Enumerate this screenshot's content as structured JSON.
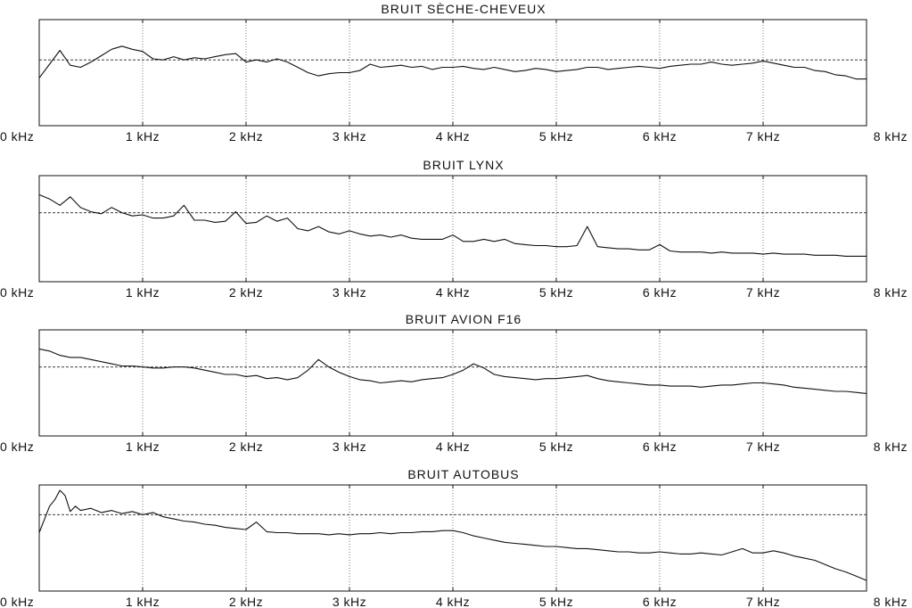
{
  "chart_data": [
    {
      "type": "line",
      "title": "BRUIT SÈCHE-CHEVEUX",
      "xlabels": [
        "0 kHz",
        "1 kHz",
        "2 kHz",
        "3 kHz",
        "4 kHz",
        "5 kHz",
        "6 kHz",
        "7 kHz",
        "8 kHz"
      ],
      "xlim": [
        0,
        8
      ],
      "ylim": [
        0,
        1
      ],
      "grid": true,
      "reference_level": 0.62,
      "x": [
        0,
        0.1,
        0.2,
        0.3,
        0.4,
        0.5,
        0.6,
        0.7,
        0.8,
        0.9,
        1.0,
        1.1,
        1.2,
        1.3,
        1.4,
        1.5,
        1.6,
        1.7,
        1.8,
        1.9,
        2.0,
        2.1,
        2.2,
        2.3,
        2.4,
        2.5,
        2.6,
        2.7,
        2.8,
        2.9,
        3.0,
        3.1,
        3.2,
        3.3,
        3.4,
        3.5,
        3.6,
        3.7,
        3.8,
        3.9,
        4.0,
        4.1,
        4.2,
        4.3,
        4.4,
        4.5,
        4.6,
        4.7,
        4.8,
        4.9,
        5.0,
        5.1,
        5.2,
        5.3,
        5.4,
        5.5,
        5.6,
        5.7,
        5.8,
        5.9,
        6.0,
        6.1,
        6.2,
        6.3,
        6.4,
        6.5,
        6.6,
        6.7,
        6.8,
        6.9,
        7.0,
        7.1,
        7.2,
        7.3,
        7.4,
        7.5,
        7.6,
        7.7,
        7.8,
        7.9,
        8.0
      ],
      "values": [
        0.45,
        0.58,
        0.71,
        0.57,
        0.55,
        0.6,
        0.66,
        0.72,
        0.75,
        0.72,
        0.7,
        0.63,
        0.62,
        0.65,
        0.62,
        0.64,
        0.63,
        0.65,
        0.67,
        0.68,
        0.6,
        0.62,
        0.6,
        0.63,
        0.6,
        0.55,
        0.5,
        0.47,
        0.49,
        0.5,
        0.5,
        0.52,
        0.58,
        0.55,
        0.56,
        0.57,
        0.55,
        0.56,
        0.53,
        0.55,
        0.55,
        0.56,
        0.54,
        0.53,
        0.55,
        0.53,
        0.51,
        0.52,
        0.54,
        0.53,
        0.51,
        0.52,
        0.53,
        0.55,
        0.55,
        0.53,
        0.54,
        0.55,
        0.56,
        0.55,
        0.54,
        0.56,
        0.57,
        0.58,
        0.58,
        0.6,
        0.58,
        0.57,
        0.58,
        0.59,
        0.61,
        0.59,
        0.57,
        0.55,
        0.55,
        0.52,
        0.51,
        0.48,
        0.47,
        0.44,
        0.44
      ]
    },
    {
      "type": "line",
      "title": "BRUIT LYNX",
      "xlabels": [
        "0 kHz",
        "1 kHz",
        "2 kHz",
        "3 kHz",
        "4 kHz",
        "5 kHz",
        "6 kHz",
        "7 kHz",
        "8 kHz"
      ],
      "xlim": [
        0,
        8
      ],
      "ylim": [
        0,
        1
      ],
      "grid": true,
      "reference_level": 0.65,
      "x": [
        0,
        0.1,
        0.2,
        0.3,
        0.4,
        0.5,
        0.6,
        0.7,
        0.8,
        0.9,
        1.0,
        1.1,
        1.2,
        1.3,
        1.4,
        1.5,
        1.6,
        1.7,
        1.8,
        1.9,
        2.0,
        2.1,
        2.2,
        2.3,
        2.4,
        2.5,
        2.6,
        2.7,
        2.8,
        2.9,
        3.0,
        3.1,
        3.2,
        3.3,
        3.4,
        3.5,
        3.6,
        3.7,
        3.8,
        3.9,
        4.0,
        4.1,
        4.2,
        4.3,
        4.4,
        4.5,
        4.6,
        4.7,
        4.8,
        4.9,
        5.0,
        5.1,
        5.2,
        5.3,
        5.4,
        5.5,
        5.6,
        5.7,
        5.8,
        5.9,
        6.0,
        6.1,
        6.2,
        6.3,
        6.4,
        6.5,
        6.6,
        6.7,
        6.8,
        6.9,
        7.0,
        7.1,
        7.2,
        7.3,
        7.4,
        7.5,
        7.6,
        7.7,
        7.8,
        7.9,
        8.0
      ],
      "values": [
        0.82,
        0.78,
        0.72,
        0.8,
        0.7,
        0.66,
        0.64,
        0.7,
        0.65,
        0.62,
        0.63,
        0.6,
        0.6,
        0.62,
        0.72,
        0.58,
        0.58,
        0.56,
        0.57,
        0.66,
        0.55,
        0.56,
        0.62,
        0.57,
        0.6,
        0.5,
        0.48,
        0.52,
        0.47,
        0.45,
        0.48,
        0.45,
        0.43,
        0.44,
        0.42,
        0.44,
        0.41,
        0.4,
        0.4,
        0.4,
        0.44,
        0.38,
        0.38,
        0.4,
        0.38,
        0.4,
        0.36,
        0.35,
        0.34,
        0.34,
        0.33,
        0.33,
        0.34,
        0.52,
        0.33,
        0.32,
        0.31,
        0.31,
        0.3,
        0.3,
        0.35,
        0.29,
        0.28,
        0.28,
        0.28,
        0.27,
        0.28,
        0.27,
        0.27,
        0.27,
        0.26,
        0.27,
        0.26,
        0.26,
        0.26,
        0.25,
        0.25,
        0.25,
        0.24,
        0.24,
        0.24
      ]
    },
    {
      "type": "line",
      "title": "BRUIT AVION F16",
      "xlabels": [
        "0 kHz",
        "1 kHz",
        "2 kHz",
        "3 kHz",
        "4 kHz",
        "5 kHz",
        "6 kHz",
        "7 kHz",
        "8 kHz"
      ],
      "xlim": [
        0,
        8
      ],
      "ylim": [
        0,
        1
      ],
      "grid": true,
      "reference_level": 0.65,
      "x": [
        0,
        0.1,
        0.2,
        0.3,
        0.4,
        0.5,
        0.6,
        0.7,
        0.8,
        0.9,
        1.0,
        1.1,
        1.2,
        1.3,
        1.4,
        1.5,
        1.6,
        1.7,
        1.8,
        1.9,
        2.0,
        2.1,
        2.2,
        2.3,
        2.4,
        2.5,
        2.6,
        2.7,
        2.8,
        2.9,
        3.0,
        3.1,
        3.2,
        3.3,
        3.4,
        3.5,
        3.6,
        3.7,
        3.8,
        3.9,
        4.0,
        4.1,
        4.2,
        4.3,
        4.4,
        4.5,
        4.6,
        4.7,
        4.8,
        4.9,
        5.0,
        5.1,
        5.2,
        5.3,
        5.4,
        5.5,
        5.6,
        5.7,
        5.8,
        5.9,
        6.0,
        6.1,
        6.2,
        6.3,
        6.4,
        6.5,
        6.6,
        6.7,
        6.8,
        6.9,
        7.0,
        7.1,
        7.2,
        7.3,
        7.4,
        7.5,
        7.6,
        7.7,
        7.8,
        7.9,
        8.0
      ],
      "values": [
        0.82,
        0.8,
        0.76,
        0.74,
        0.74,
        0.72,
        0.7,
        0.68,
        0.66,
        0.66,
        0.65,
        0.64,
        0.64,
        0.65,
        0.65,
        0.64,
        0.62,
        0.6,
        0.58,
        0.58,
        0.56,
        0.57,
        0.54,
        0.55,
        0.53,
        0.55,
        0.62,
        0.72,
        0.65,
        0.6,
        0.56,
        0.53,
        0.52,
        0.5,
        0.51,
        0.52,
        0.51,
        0.53,
        0.54,
        0.55,
        0.58,
        0.62,
        0.68,
        0.64,
        0.58,
        0.56,
        0.55,
        0.54,
        0.53,
        0.54,
        0.54,
        0.55,
        0.56,
        0.57,
        0.54,
        0.52,
        0.51,
        0.5,
        0.49,
        0.48,
        0.48,
        0.47,
        0.47,
        0.47,
        0.46,
        0.47,
        0.48,
        0.48,
        0.49,
        0.5,
        0.5,
        0.49,
        0.48,
        0.46,
        0.45,
        0.44,
        0.43,
        0.42,
        0.42,
        0.41,
        0.4
      ]
    },
    {
      "type": "line",
      "title": "BRUIT AUTOBUS",
      "xlabels": [
        "0 kHz",
        "1 kHz",
        "2 kHz",
        "3 kHz",
        "4 kHz",
        "5 kHz",
        "6 kHz",
        "7 kHz",
        "8 kHz"
      ],
      "xlim": [
        0,
        8
      ],
      "ylim": [
        0,
        1
      ],
      "grid": true,
      "reference_level": 0.72,
      "x": [
        0,
        0.1,
        0.15,
        0.2,
        0.25,
        0.3,
        0.35,
        0.4,
        0.5,
        0.6,
        0.7,
        0.8,
        0.9,
        1.0,
        1.1,
        1.2,
        1.3,
        1.4,
        1.5,
        1.6,
        1.7,
        1.8,
        1.9,
        2.0,
        2.1,
        2.2,
        2.3,
        2.4,
        2.5,
        2.6,
        2.7,
        2.8,
        2.9,
        3.0,
        3.1,
        3.2,
        3.3,
        3.4,
        3.5,
        3.6,
        3.7,
        3.8,
        3.9,
        4.0,
        4.1,
        4.2,
        4.3,
        4.4,
        4.5,
        4.6,
        4.7,
        4.8,
        4.9,
        5.0,
        5.1,
        5.2,
        5.3,
        5.4,
        5.5,
        5.6,
        5.7,
        5.8,
        5.9,
        6.0,
        6.1,
        6.2,
        6.3,
        6.4,
        6.5,
        6.6,
        6.7,
        6.8,
        6.9,
        7.0,
        7.1,
        7.2,
        7.3,
        7.4,
        7.5,
        7.6,
        7.7,
        7.8,
        7.9,
        8.0
      ],
      "values": [
        0.55,
        0.8,
        0.86,
        0.95,
        0.9,
        0.75,
        0.8,
        0.76,
        0.78,
        0.74,
        0.76,
        0.73,
        0.75,
        0.72,
        0.74,
        0.7,
        0.68,
        0.66,
        0.65,
        0.63,
        0.62,
        0.6,
        0.59,
        0.58,
        0.65,
        0.56,
        0.55,
        0.55,
        0.54,
        0.54,
        0.54,
        0.53,
        0.54,
        0.53,
        0.54,
        0.54,
        0.55,
        0.54,
        0.55,
        0.55,
        0.56,
        0.56,
        0.57,
        0.57,
        0.55,
        0.52,
        0.5,
        0.48,
        0.46,
        0.45,
        0.44,
        0.43,
        0.42,
        0.42,
        0.41,
        0.4,
        0.4,
        0.39,
        0.38,
        0.37,
        0.37,
        0.36,
        0.36,
        0.37,
        0.36,
        0.35,
        0.35,
        0.36,
        0.35,
        0.34,
        0.37,
        0.4,
        0.36,
        0.36,
        0.38,
        0.36,
        0.33,
        0.31,
        0.29,
        0.25,
        0.21,
        0.18,
        0.14,
        0.1
      ]
    }
  ]
}
